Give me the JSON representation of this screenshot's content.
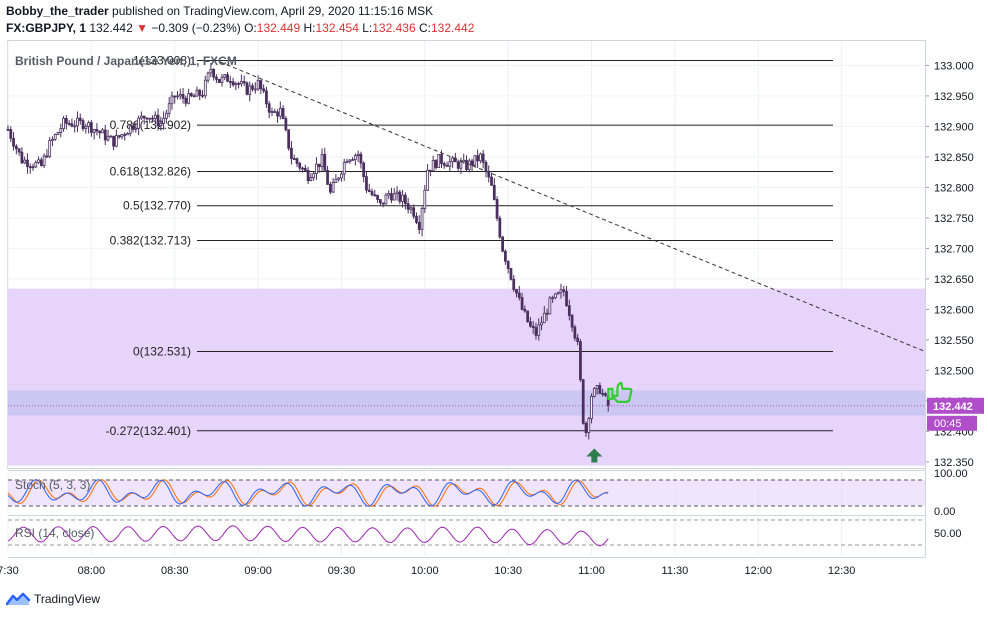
{
  "header": {
    "author": "Bobby_the_trader",
    "published": "published on TradingView.com, April 29, 2020 11:15:16 MSK",
    "symbol": "FX:GBPJPY, 1",
    "last": "132.442",
    "change": "−0.309 (−0.23%)",
    "o_label": "O:",
    "o": "132.449",
    "h_label": "H:",
    "h": "132.454",
    "l_label": "L:",
    "l": "132.436",
    "c_label": "C:",
    "c": "132.442"
  },
  "footer": {
    "brand": "TradingView"
  },
  "colors": {
    "zone": "#e6d4fb",
    "zone_band": "#c9c4f2",
    "candle": "#4a2f5e",
    "stoch_k": "#2962ff",
    "stoch_d": "#ff6d00",
    "rsi": "#9c27b0",
    "price_tag": "#b04dc8",
    "arrow": "#2e7d4f",
    "thumb": "#33cc33"
  },
  "icons": {
    "signal": "green-up-arrow-icon",
    "approval": "thumbs-up-icon",
    "logo": "tradingview-logo-icon"
  },
  "chart_data": {
    "type": "candlestick",
    "title": "British Pound / Japanese Yen, 1, FXCM",
    "price_axis": {
      "ylim": [
        132.34,
        133.04
      ],
      "ticks": [
        "133.000",
        "132.950",
        "132.900",
        "132.850",
        "132.800",
        "132.750",
        "132.700",
        "132.650",
        "132.600",
        "132.550",
        "132.500",
        "132.450",
        "132.400",
        "132.350"
      ]
    },
    "time_axis": {
      "xlim_minutes": [
        450,
        780
      ],
      "ticks": [
        {
          "label": "7:30",
          "t": 450
        },
        {
          "label": "08:00",
          "t": 480
        },
        {
          "label": "08:30",
          "t": 510
        },
        {
          "label": "09:00",
          "t": 540
        },
        {
          "label": "09:30",
          "t": 570
        },
        {
          "label": "10:00",
          "t": 600
        },
        {
          "label": "10:30",
          "t": 630
        },
        {
          "label": "11:00",
          "t": 660
        },
        {
          "label": "11:30",
          "t": 690
        },
        {
          "label": "12:00",
          "t": 720
        },
        {
          "label": "12:30",
          "t": 750
        }
      ]
    },
    "path_anchors": [
      [
        450,
        132.895
      ],
      [
        455,
        132.845
      ],
      [
        462,
        132.835
      ],
      [
        465,
        132.87
      ],
      [
        470,
        132.905
      ],
      [
        478,
        132.905
      ],
      [
        488,
        132.875
      ],
      [
        493,
        132.895
      ],
      [
        500,
        132.92
      ],
      [
        505,
        132.905
      ],
      [
        510,
        132.95
      ],
      [
        515,
        132.945
      ],
      [
        520,
        132.955
      ],
      [
        523,
        132.995
      ],
      [
        526,
        132.975
      ],
      [
        530,
        132.98
      ],
      [
        536,
        132.96
      ],
      [
        540,
        132.97
      ],
      [
        545,
        132.92
      ],
      [
        548,
        132.925
      ],
      [
        552,
        132.85
      ],
      [
        558,
        132.82
      ],
      [
        563,
        132.845
      ],
      [
        566,
        132.79
      ],
      [
        572,
        132.85
      ],
      [
        576,
        132.855
      ],
      [
        579,
        132.8
      ],
      [
        584,
        132.77
      ],
      [
        587,
        132.79
      ],
      [
        592,
        132.78
      ],
      [
        596,
        132.76
      ],
      [
        598,
        132.74
      ],
      [
        601,
        132.83
      ],
      [
        605,
        132.845
      ],
      [
        610,
        132.84
      ],
      [
        615,
        132.835
      ],
      [
        620,
        132.85
      ],
      [
        624,
        132.8
      ],
      [
        628,
        132.7
      ],
      [
        632,
        132.64
      ],
      [
        635,
        132.6
      ],
      [
        638,
        132.57
      ],
      [
        640,
        132.56
      ],
      [
        645,
        132.61
      ],
      [
        650,
        132.63
      ],
      [
        653,
        132.58
      ],
      [
        655,
        132.54
      ],
      [
        657,
        132.42
      ],
      [
        658,
        132.4
      ],
      [
        660,
        132.46
      ],
      [
        663,
        132.47
      ],
      [
        666,
        132.442
      ]
    ],
    "fib_levels": [
      {
        "label": "1(133.008)",
        "value": 133.008
      },
      {
        "label": "0.786(132.902)",
        "value": 132.902
      },
      {
        "label": "0.618(132.826)",
        "value": 132.826
      },
      {
        "label": "0.5(132.770)",
        "value": 132.77
      },
      {
        "label": "0.382(132.713)",
        "value": 132.713
      },
      {
        "label": "0(132.531)",
        "value": 132.531
      },
      {
        "label": "-0.272(132.401)",
        "value": 132.401
      }
    ],
    "zone": {
      "top": 132.634,
      "bottom": 132.344
    },
    "zone_band": {
      "top": 132.467,
      "bottom": 132.426
    },
    "trendline": {
      "from": [
        524,
        133.01
      ],
      "to": [
        780,
        132.531
      ]
    },
    "current_price": {
      "label": "132.442",
      "value": 132.442,
      "countdown": "00:45"
    },
    "extra_price_tick": {
      "label": "132.400",
      "value": 132.4
    },
    "stoch": {
      "label": "Stoch (5, 3, 3)",
      "levels": [
        "100.00",
        "0.00"
      ]
    },
    "rsi": {
      "label": "RSI (14, close)",
      "levels": [
        "50.00"
      ]
    }
  }
}
